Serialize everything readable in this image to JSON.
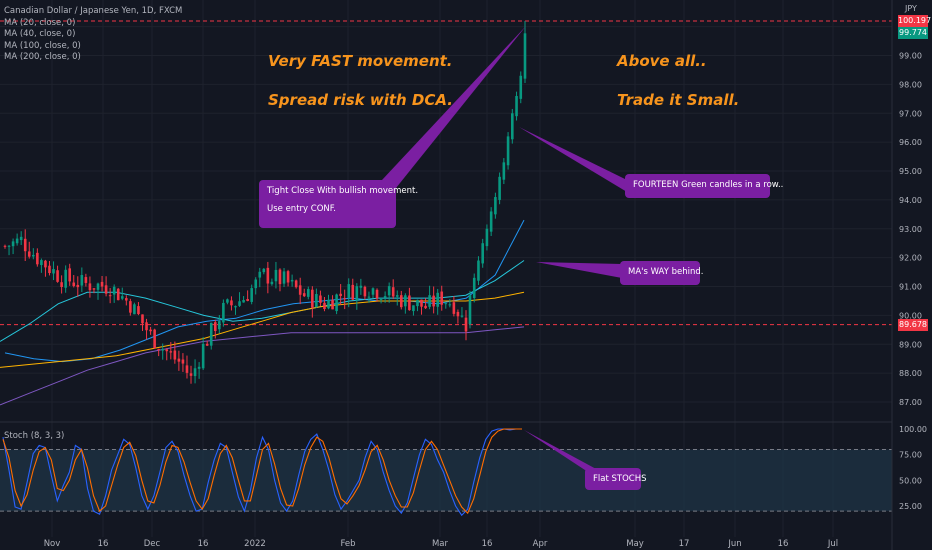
{
  "chart_data": {
    "type": "candlestick",
    "title": "Canadian Dollar / Japanese Yen, 1D, FXCM",
    "currency": "JPY",
    "price_axis": {
      "ylim": [
        86.6,
        100.4
      ],
      "ticks": [
        "100.00",
        "99.00",
        "98.00",
        "97.00",
        "96.00",
        "95.00",
        "94.00",
        "93.00",
        "92.00",
        "91.00",
        "90.00",
        "89.00",
        "88.00",
        "87.00"
      ]
    },
    "time_axis_labels": [
      "Nov",
      "16",
      "Dec",
      "16",
      "2022",
      "Feb",
      "Mar",
      "16",
      "Apr",
      "May",
      "17",
      "Jun",
      "16",
      "Jul"
    ],
    "price_tags": [
      {
        "label": "100.197",
        "value": 100.197,
        "color": "#f23645"
      },
      {
        "label": "99.774",
        "value": 99.774,
        "color": "#089981"
      },
      {
        "label": "89.678",
        "value": 89.678,
        "color": "#f23645"
      }
    ],
    "horizontal_lines": [
      100.197,
      89.678
    ],
    "indicators": [
      {
        "name": "MA (20, close, 0)",
        "color": "#2196f3"
      },
      {
        "name": "MA (40, close, 0)",
        "color": "#26c6da"
      },
      {
        "name": "MA (100, close, 0)",
        "color": "#ffb300"
      },
      {
        "name": "MA (200, close, 0)",
        "color": "#7e57c2"
      }
    ],
    "ma_estimates": {
      "ma20": [
        88.7,
        88.5,
        88.4,
        88.5,
        88.8,
        89.2,
        89.6,
        89.8,
        89.9,
        90.2,
        90.4,
        90.5,
        90.6,
        90.5,
        90.5,
        90.4,
        90.6,
        91.4,
        93.3
      ],
      "ma40": [
        89.1,
        89.7,
        90.4,
        90.8,
        90.8,
        90.6,
        90.3,
        90.0,
        89.8,
        89.9,
        90.1,
        90.3,
        90.5,
        90.6,
        90.6,
        90.6,
        90.7,
        91.2,
        91.9
      ],
      "ma100": [
        88.2,
        88.3,
        88.4,
        88.5,
        88.6,
        88.8,
        89.0,
        89.2,
        89.5,
        89.8,
        90.1,
        90.3,
        90.4,
        90.5,
        90.5,
        90.5,
        90.5,
        90.6,
        90.8
      ],
      "ma200": [
        86.9,
        87.3,
        87.7,
        88.1,
        88.4,
        88.7,
        88.9,
        89.1,
        89.2,
        89.3,
        89.4,
        89.4,
        89.4,
        89.4,
        89.4,
        89.4,
        89.4,
        89.5,
        89.6
      ]
    },
    "stochastic": {
      "label": "Stoch (8, 3, 3)",
      "ylim": [
        15,
        105
      ],
      "ticks": [
        "100.00",
        "75.00",
        "50.00",
        "25.00"
      ],
      "bands": [
        80,
        20
      ],
      "k": [
        92,
        60,
        24,
        22,
        48,
        76,
        84,
        82,
        55,
        30,
        45,
        58,
        84,
        80,
        42,
        20,
        17,
        35,
        60,
        75,
        90,
        85,
        62,
        35,
        22,
        35,
        58,
        82,
        88,
        78,
        55,
        35,
        20,
        22,
        48,
        70,
        86,
        82,
        58,
        34,
        20,
        40,
        72,
        92,
        80,
        50,
        28,
        20,
        30,
        55,
        78,
        90,
        95,
        80,
        60,
        36,
        22,
        30,
        40,
        50,
        72,
        88,
        80,
        58,
        40,
        25,
        18,
        28,
        52,
        75,
        90,
        85,
        70,
        58,
        40,
        25,
        16,
        22,
        48,
        72,
        90,
        98,
        100,
        100,
        99,
        100,
        100
      ],
      "d": [
        90,
        72,
        40,
        25,
        36,
        60,
        78,
        82,
        70,
        42,
        40,
        50,
        70,
        80,
        62,
        35,
        20,
        25,
        45,
        65,
        82,
        87,
        74,
        50,
        30,
        28,
        45,
        68,
        84,
        82,
        68,
        48,
        30,
        22,
        32,
        55,
        76,
        84,
        72,
        50,
        30,
        30,
        55,
        80,
        86,
        66,
        42,
        26,
        25,
        42,
        65,
        82,
        92,
        88,
        72,
        50,
        32,
        27,
        35,
        45,
        60,
        78,
        84,
        70,
        50,
        35,
        24,
        24,
        38,
        60,
        80,
        88,
        80,
        65,
        50,
        35,
        24,
        18,
        32,
        55,
        78,
        92,
        98,
        100,
        100,
        100,
        100
      ]
    },
    "annotations": [
      "Very FAST movement.",
      "Spread risk with DCA.",
      "Above all..",
      "Trade it Small.",
      "Tight Close With bullish movement.",
      "Use entry CONF.",
      "FOURTEEN Green candles in a row..",
      "MA's WAY behind.",
      "Flat STOCHS"
    ]
  },
  "legend": {
    "title": "Canadian Dollar / Japanese Yen, 1D, FXCM",
    "ma20": "MA (20, close, 0)",
    "ma40": "MA (40, close, 0)",
    "ma100": "MA (100, close, 0)",
    "ma200": "MA (200, close, 0)",
    "stoch": "Stoch (8, 3, 3)"
  },
  "notes": {
    "left1": "Very FAST movement.",
    "left2": "Spread risk with DCA.",
    "right1": "Above all..",
    "right2": "Trade it Small."
  },
  "callouts": {
    "tight1": "Tight Close With bullish movement.",
    "tight2": "Use entry CONF.",
    "fourteen": "FOURTEEN Green candles in a row..",
    "ma_behind": "MA's WAY behind.",
    "flat": "Flat STOCHS"
  },
  "colors": {
    "background": "#131722",
    "up": "#089981",
    "down": "#f23645",
    "grid": "#1e222d",
    "axis_text": "#b2b5be",
    "callout": "#7b1fa2",
    "note": "#f7941d"
  }
}
